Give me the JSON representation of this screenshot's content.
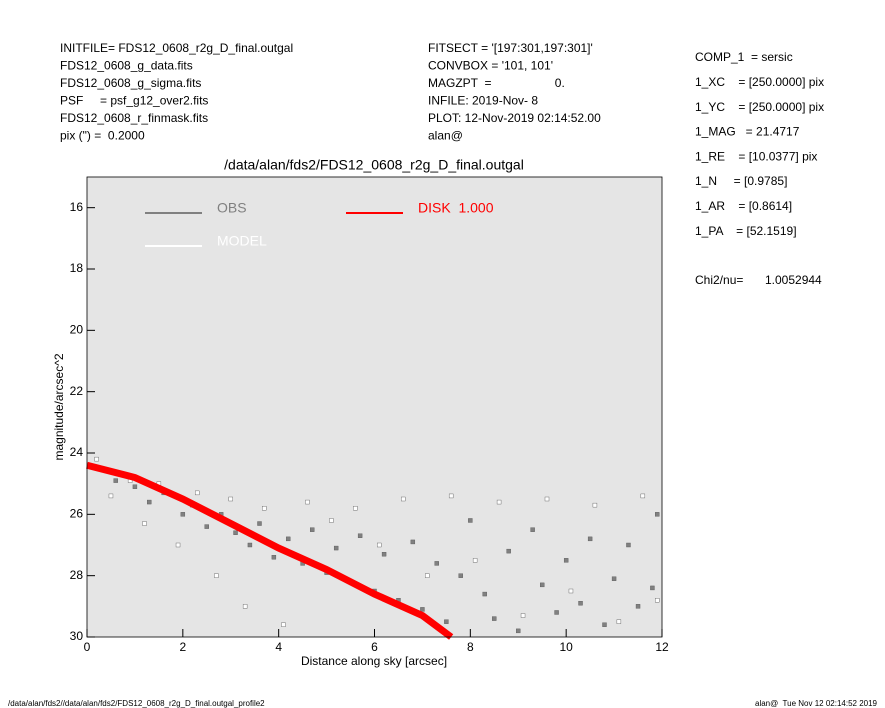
{
  "header": {
    "left": [
      "INITFILE= FDS12_0608_r2g_D_final.outgal",
      "FDS12_0608_g_data.fits",
      "FDS12_0608_g_sigma.fits",
      "PSF     = psf_g12_over2.fits",
      "FDS12_0608_r_finmask.fits",
      "pix (\") =  0.2000"
    ],
    "middle": [
      "FITSECT = '[197:301,197:301]'",
      "CONVBOX = '101, 101'",
      "MAGZPT  =                   0.",
      "INFILE: 2019-Nov- 8",
      "PLOT: 12-Nov-2019 02:14:52.00",
      "alan@"
    ],
    "right": [
      "COMP_1  = sersic",
      "1_XC    = [250.0000] pix",
      "1_YC    = [250.0000] pix",
      "1_MAG   = 21.4717",
      "1_RE    = [10.0377] pix",
      "1_N     = [0.9785]",
      "1_AR    = [0.8614]",
      "1_PA    = [52.1519]"
    ],
    "chi2_label": "Chi2/nu=",
    "chi2_value": "1.0052944",
    "footer_left": "/data/alan/fds2//data/alan/fds2/FDS12_0608_r2g_D_final.outgal_profile2",
    "footer_right": "alan@  Tue Nov 12 02:14:52 2019"
  },
  "chart_data": {
    "type": "scatter",
    "title": "/data/alan/fds2/FDS12_0608_r2g_D_final.outgal",
    "x_label": "Distance along sky [arcsec]",
    "y_label": "magnitude/arcsec^2",
    "xlim": [
      0,
      12
    ],
    "ylim": [
      30,
      15
    ],
    "xticks": [
      0,
      2,
      4,
      6,
      8,
      10,
      12
    ],
    "yticks": [
      16,
      18,
      20,
      22,
      24,
      26,
      28,
      30
    ],
    "background": "#e5e5e5",
    "series": [
      {
        "name": "OBS",
        "color": "#808080",
        "x": [
          0.3,
          0.6,
          1.0,
          1.3,
          1.6,
          2.0,
          2.2,
          2.5,
          2.8,
          3.1,
          3.4,
          3.6,
          3.9,
          4.2,
          4.5,
          4.7,
          5.0,
          5.2,
          5.5,
          5.7,
          6.0,
          6.2,
          6.5,
          6.8,
          7.0,
          7.3,
          7.5,
          7.8,
          8.0,
          8.3,
          8.5,
          8.8,
          9.0,
          9.3,
          9.5,
          9.8,
          10.0,
          10.3,
          10.5,
          10.8,
          11.0,
          11.3,
          11.5,
          11.8,
          11.9
        ],
        "values": [
          24.5,
          24.9,
          25.1,
          25.6,
          25.3,
          26.0,
          25.7,
          26.4,
          26.0,
          26.6,
          27.0,
          26.3,
          27.4,
          26.8,
          27.6,
          26.5,
          27.9,
          27.1,
          28.2,
          26.7,
          28.5,
          27.3,
          28.8,
          26.9,
          29.1,
          27.6,
          29.5,
          28.0,
          26.2,
          28.6,
          29.4,
          27.2,
          29.8,
          26.5,
          28.3,
          29.2,
          27.5,
          28.9,
          26.8,
          29.6,
          28.1,
          27.0,
          29.0,
          28.4,
          26.0
        ]
      },
      {
        "name": "MODEL",
        "color": "#ffffff",
        "x": [
          0.2,
          0.5,
          0.9,
          1.2,
          1.5,
          1.9,
          2.3,
          2.7,
          3.0,
          3.3,
          3.7,
          4.1,
          4.6,
          5.1,
          5.6,
          6.1,
          6.6,
          7.1,
          7.6,
          8.1,
          8.6,
          9.1,
          9.6,
          10.1,
          10.6,
          11.1,
          11.6,
          11.9
        ],
        "values": [
          24.2,
          25.4,
          24.9,
          26.3,
          25.0,
          27.0,
          25.3,
          28.0,
          25.5,
          29.0,
          25.8,
          29.6,
          25.6,
          26.2,
          25.8,
          27.0,
          25.5,
          28.0,
          25.4,
          27.5,
          25.6,
          29.3,
          25.5,
          28.5,
          25.7,
          29.5,
          25.4,
          28.8
        ]
      },
      {
        "name": "DISK  1.000",
        "color": "#ff0000",
        "type": "line",
        "x": [
          0,
          1,
          2,
          3,
          4,
          5,
          6,
          7,
          7.6
        ],
        "values": [
          24.4,
          24.8,
          25.5,
          26.3,
          27.1,
          27.8,
          28.6,
          29.3,
          30
        ]
      }
    ]
  }
}
